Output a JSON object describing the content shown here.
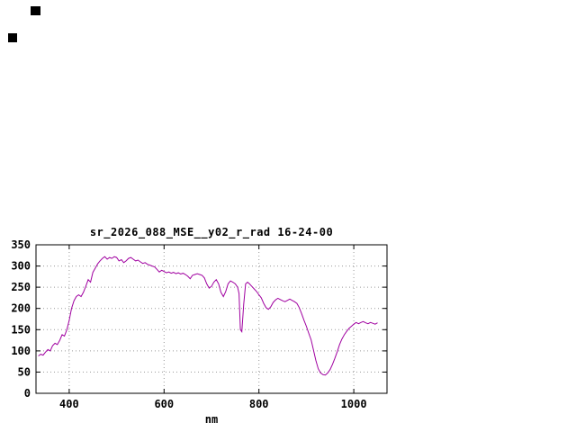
{
  "window": {
    "background_color": "#ffffff",
    "markers": [
      {
        "name": "block-marker-1",
        "color": "#000000"
      },
      {
        "name": "block-marker-2",
        "color": "#000000"
      }
    ]
  },
  "chart_data": {
    "type": "line",
    "title": "sr_2026_088_MSE__y02_r_rad 16-24-00",
    "xlabel": "nm",
    "ylabel": "",
    "xlim": [
      330,
      1070
    ],
    "ylim": [
      0,
      350
    ],
    "xticks": [
      400,
      600,
      800,
      1000
    ],
    "yticks": [
      0,
      50,
      100,
      150,
      200,
      250,
      300,
      350
    ],
    "grid": true,
    "legend": "none",
    "line_color": "#a000a0",
    "axis_color": "#000000",
    "grid_color": "#9a9a9a",
    "series": [
      {
        "name": "sr_2026_088_MSE__y02_r_rad",
        "x": [
          335,
          340,
          345,
          350,
          355,
          360,
          365,
          370,
          375,
          380,
          385,
          390,
          395,
          400,
          405,
          410,
          415,
          420,
          425,
          430,
          435,
          440,
          445,
          450,
          455,
          460,
          465,
          470,
          475,
          480,
          485,
          490,
          495,
          500,
          505,
          510,
          515,
          520,
          525,
          530,
          535,
          540,
          545,
          550,
          555,
          560,
          565,
          570,
          575,
          580,
          585,
          590,
          595,
          600,
          605,
          610,
          615,
          620,
          625,
          630,
          635,
          640,
          645,
          650,
          655,
          660,
          665,
          670,
          675,
          680,
          685,
          690,
          695,
          700,
          705,
          710,
          715,
          720,
          725,
          730,
          735,
          740,
          745,
          750,
          755,
          758,
          761,
          764,
          768,
          772,
          776,
          780,
          785,
          790,
          795,
          800,
          805,
          810,
          815,
          820,
          825,
          830,
          835,
          840,
          845,
          850,
          855,
          860,
          865,
          870,
          875,
          880,
          885,
          890,
          895,
          900,
          905,
          910,
          915,
          920,
          925,
          930,
          935,
          940,
          945,
          950,
          955,
          960,
          965,
          970,
          975,
          980,
          985,
          990,
          995,
          1000,
          1005,
          1010,
          1015,
          1020,
          1025,
          1030,
          1035,
          1040,
          1045,
          1050
        ],
        "y": [
          88,
          92,
          90,
          97,
          103,
          100,
          112,
          118,
          115,
          125,
          138,
          135,
          150,
          172,
          200,
          218,
          228,
          232,
          228,
          238,
          252,
          268,
          262,
          285,
          295,
          305,
          312,
          318,
          322,
          316,
          320,
          318,
          322,
          320,
          312,
          315,
          308,
          312,
          318,
          320,
          316,
          312,
          314,
          310,
          306,
          308,
          304,
          302,
          300,
          298,
          292,
          286,
          290,
          287,
          284,
          286,
          283,
          285,
          282,
          284,
          281,
          283,
          280,
          276,
          270,
          278,
          280,
          282,
          280,
          278,
          272,
          258,
          248,
          252,
          262,
          268,
          258,
          238,
          228,
          240,
          258,
          265,
          262,
          258,
          250,
          235,
          150,
          145,
          210,
          258,
          262,
          258,
          252,
          246,
          240,
          232,
          225,
          212,
          202,
          198,
          204,
          214,
          220,
          224,
          221,
          218,
          216,
          219,
          222,
          219,
          216,
          212,
          202,
          188,
          172,
          158,
          142,
          126,
          102,
          78,
          58,
          48,
          44,
          43,
          48,
          56,
          68,
          82,
          98,
          115,
          128,
          138,
          146,
          153,
          158,
          163,
          167,
          164,
          167,
          169,
          166,
          164,
          167,
          165,
          163,
          166
        ]
      }
    ]
  }
}
